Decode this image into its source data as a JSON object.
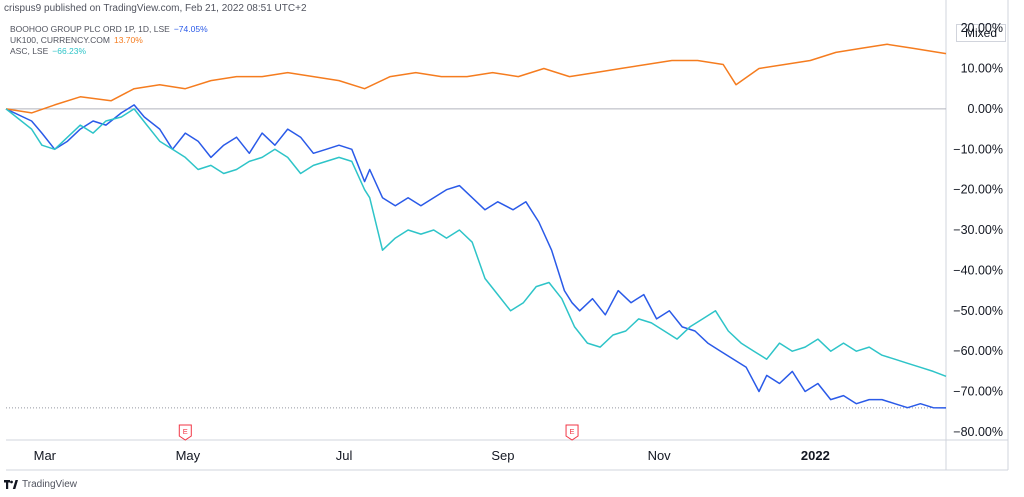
{
  "header": {
    "publisher_text": "crispus9 published on TradingView.com, Feb 21, 2022 08:51 UTC+2"
  },
  "legend": [
    {
      "name": "BOOHOO GROUP PLC ORD 1P, 1D, LSE",
      "value": "−74.05%",
      "color": "#2a5ae8"
    },
    {
      "name": "UK100, CURRENCY.COM",
      "value": "13.70%",
      "color": "#f57c1f"
    },
    {
      "name": "ASC, LSE",
      "value": "−66.23%",
      "color": "#2ec4c8"
    }
  ],
  "scale_mode": "Mixed",
  "footer": {
    "brand": "TradingView"
  },
  "chart_data": {
    "type": "line",
    "y_unit": "%",
    "ylim": [
      -82,
      24
    ],
    "y_ticks": [
      "20.00%",
      "10.00%",
      "0.00%",
      "−10.00%",
      "−20.00%",
      "−30.00%",
      "−40.00%",
      "−50.00%",
      "−60.00%",
      "−70.00%",
      "−80.00%"
    ],
    "y_tick_values": [
      20,
      10,
      0,
      -10,
      -20,
      -30,
      -40,
      -50,
      -60,
      -70,
      -80
    ],
    "x_ticks": [
      "Mar",
      "May",
      "Jul",
      "Sep",
      "Nov",
      "2022"
    ],
    "x_tick_dates": [
      "2021-03-01",
      "2021-05-01",
      "2021-07-01",
      "2021-09-01",
      "2021-11-01",
      "2022-01-01"
    ],
    "x_range": [
      "2021-02-19",
      "2022-02-21"
    ],
    "earnings_markers": [
      {
        "date": "2021-04-30",
        "label": "E"
      },
      {
        "date": "2021-09-28",
        "label": "E"
      }
    ],
    "grid": false,
    "series": [
      {
        "name": "BOOHOO GROUP PLC ORD 1P, 1D, LSE",
        "color": "#2a5ae8",
        "x": [
          "2021-02-19",
          "2021-03-01",
          "2021-03-05",
          "2021-03-10",
          "2021-03-15",
          "2021-03-20",
          "2021-03-25",
          "2021-03-30",
          "2021-04-05",
          "2021-04-10",
          "2021-04-14",
          "2021-04-20",
          "2021-04-25",
          "2021-04-30",
          "2021-05-05",
          "2021-05-10",
          "2021-05-15",
          "2021-05-20",
          "2021-05-25",
          "2021-05-30",
          "2021-06-04",
          "2021-06-09",
          "2021-06-14",
          "2021-06-19",
          "2021-06-24",
          "2021-06-29",
          "2021-07-04",
          "2021-07-09",
          "2021-07-11",
          "2021-07-16",
          "2021-07-21",
          "2021-07-26",
          "2021-07-31",
          "2021-08-05",
          "2021-08-10",
          "2021-08-15",
          "2021-08-20",
          "2021-08-25",
          "2021-08-30",
          "2021-09-05",
          "2021-09-10",
          "2021-09-15",
          "2021-09-20",
          "2021-09-25",
          "2021-09-28",
          "2021-10-01",
          "2021-10-06",
          "2021-10-11",
          "2021-10-16",
          "2021-10-21",
          "2021-10-26",
          "2021-10-31",
          "2021-11-05",
          "2021-11-10",
          "2021-11-15",
          "2021-11-20",
          "2021-11-25",
          "2021-11-30",
          "2021-12-05",
          "2021-12-10",
          "2021-12-13",
          "2021-12-18",
          "2021-12-23",
          "2021-12-28",
          "2022-01-02",
          "2022-01-07",
          "2022-01-12",
          "2022-01-17",
          "2022-01-22",
          "2022-01-27",
          "2022-02-01",
          "2022-02-06",
          "2022-02-11",
          "2022-02-16",
          "2022-02-21"
        ],
        "y": [
          0,
          -3,
          -6,
          -10,
          -8,
          -5,
          -3,
          -4,
          -1,
          1,
          -2,
          -5,
          -10,
          -6,
          -8,
          -12,
          -9,
          -7,
          -11,
          -6,
          -9,
          -5,
          -7,
          -11,
          -10,
          -9,
          -10,
          -18,
          -15,
          -22,
          -24,
          -22,
          -24,
          -22,
          -20,
          -19,
          -22,
          -25,
          -23,
          -25,
          -23,
          -28,
          -35,
          -45,
          -48,
          -50,
          -47,
          -51,
          -45,
          -48,
          -46,
          -52,
          -50,
          -54,
          -55,
          -58,
          -60,
          -62,
          -64,
          -70,
          -66,
          -68,
          -65,
          -70,
          -68,
          -72,
          -71,
          -73,
          -72,
          -72,
          -73,
          -74,
          -73,
          -74,
          -74.05
        ]
      },
      {
        "name": "UK100, CURRENCY.COM",
        "color": "#f57c1f",
        "x": [
          "2021-02-19",
          "2021-03-01",
          "2021-03-10",
          "2021-03-20",
          "2021-04-01",
          "2021-04-10",
          "2021-04-20",
          "2021-04-30",
          "2021-05-10",
          "2021-05-20",
          "2021-05-30",
          "2021-06-09",
          "2021-06-19",
          "2021-06-29",
          "2021-07-09",
          "2021-07-19",
          "2021-07-29",
          "2021-08-08",
          "2021-08-18",
          "2021-08-28",
          "2021-09-07",
          "2021-09-17",
          "2021-09-27",
          "2021-10-07",
          "2021-10-17",
          "2021-10-27",
          "2021-11-06",
          "2021-11-16",
          "2021-11-26",
          "2021-12-01",
          "2021-12-10",
          "2021-12-20",
          "2021-12-30",
          "2022-01-09",
          "2022-01-19",
          "2022-01-29",
          "2022-02-08",
          "2022-02-21"
        ],
        "y": [
          0,
          -1,
          1,
          3,
          2,
          5,
          6,
          5,
          7,
          8,
          8,
          9,
          8,
          7,
          5,
          8,
          9,
          8,
          8,
          9,
          8,
          10,
          8,
          9,
          10,
          11,
          12,
          12,
          11,
          6,
          10,
          11,
          12,
          14,
          15,
          16,
          15,
          13.7
        ]
      },
      {
        "name": "ASC, LSE",
        "color": "#2ec4c8",
        "x": [
          "2021-02-19",
          "2021-03-01",
          "2021-03-05",
          "2021-03-10",
          "2021-03-15",
          "2021-03-20",
          "2021-03-25",
          "2021-03-30",
          "2021-04-05",
          "2021-04-10",
          "2021-04-15",
          "2021-04-20",
          "2021-04-25",
          "2021-04-30",
          "2021-05-05",
          "2021-05-10",
          "2021-05-15",
          "2021-05-20",
          "2021-05-25",
          "2021-05-30",
          "2021-06-04",
          "2021-06-09",
          "2021-06-14",
          "2021-06-19",
          "2021-06-24",
          "2021-06-29",
          "2021-07-04",
          "2021-07-09",
          "2021-07-11",
          "2021-07-16",
          "2021-07-21",
          "2021-07-26",
          "2021-07-31",
          "2021-08-05",
          "2021-08-10",
          "2021-08-15",
          "2021-08-20",
          "2021-08-25",
          "2021-08-30",
          "2021-09-04",
          "2021-09-09",
          "2021-09-14",
          "2021-09-19",
          "2021-09-24",
          "2021-09-29",
          "2021-10-04",
          "2021-10-09",
          "2021-10-14",
          "2021-10-19",
          "2021-10-24",
          "2021-10-29",
          "2021-11-03",
          "2021-11-08",
          "2021-11-13",
          "2021-11-18",
          "2021-11-23",
          "2021-11-28",
          "2021-12-03",
          "2021-12-08",
          "2021-12-13",
          "2021-12-18",
          "2021-12-23",
          "2021-12-28",
          "2022-01-02",
          "2022-01-07",
          "2022-01-12",
          "2022-01-17",
          "2022-01-22",
          "2022-01-27",
          "2022-02-01",
          "2022-02-06",
          "2022-02-11",
          "2022-02-16",
          "2022-02-21"
        ],
        "y": [
          0,
          -5,
          -9,
          -10,
          -7,
          -4,
          -6,
          -3,
          -2,
          0,
          -4,
          -8,
          -10,
          -12,
          -15,
          -14,
          -16,
          -15,
          -13,
          -12,
          -10,
          -12,
          -16,
          -14,
          -13,
          -12,
          -13,
          -20,
          -22,
          -35,
          -32,
          -30,
          -31,
          -30,
          -32,
          -30,
          -33,
          -42,
          -46,
          -50,
          -48,
          -44,
          -43,
          -47,
          -54,
          -58,
          -59,
          -56,
          -55,
          -52,
          -53,
          -55,
          -57,
          -54,
          -52,
          -50,
          -55,
          -58,
          -60,
          -62,
          -58,
          -60,
          -59,
          -57,
          -60,
          -58,
          -60,
          -59,
          -61,
          -62,
          -63,
          -64,
          -65,
          -66.23
        ]
      }
    ]
  }
}
